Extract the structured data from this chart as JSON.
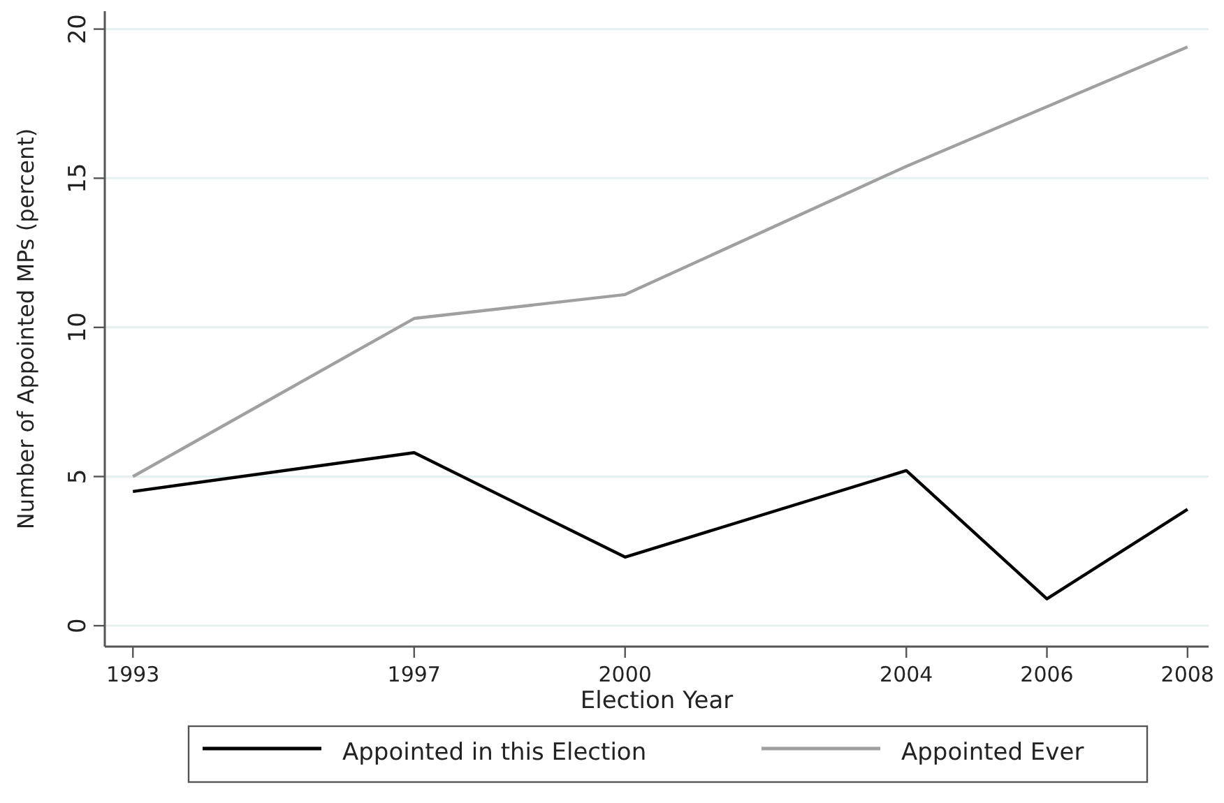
{
  "chart_data": {
    "type": "line",
    "xlabel": "Election Year",
    "ylabel": "Number of Appointed MPs (percent)",
    "x": [
      1993,
      1997,
      2000,
      2004,
      2006,
      2008
    ],
    "series": [
      {
        "name": "Appointed in this Election",
        "color": "#000000",
        "values": [
          4.5,
          5.8,
          2.3,
          5.2,
          0.9,
          3.9
        ]
      },
      {
        "name": "Appointed Ever",
        "color": "#a0a0a0",
        "x": [
          1993,
          1997,
          2000,
          2004,
          2008
        ],
        "values": [
          5.0,
          10.3,
          11.1,
          15.4,
          19.4
        ]
      }
    ],
    "xlim": [
      1992.6,
      2008.3
    ],
    "xticks": [
      1993,
      1997,
      2000,
      2004,
      2006,
      2008
    ],
    "ylim": [
      -0.7,
      20.6
    ],
    "yticks": [
      0,
      5,
      10,
      15,
      20
    ],
    "grid": "y",
    "legend": "bottom",
    "marker": "none",
    "line_style": "solid"
  }
}
